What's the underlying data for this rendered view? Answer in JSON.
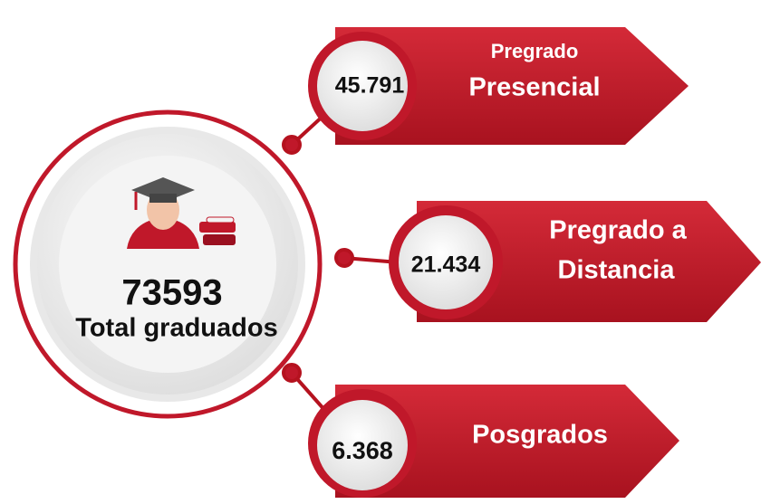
{
  "total": {
    "value": "73593",
    "label": "Total graduados"
  },
  "items": [
    {
      "value": "45.791",
      "label_line1": "Pregrado",
      "label_line2": "Presencial"
    },
    {
      "value": "21.434",
      "label_line1": "Pregrado a",
      "label_line2": "Distancia"
    },
    {
      "value": "6.368",
      "label_line1": "Posgrados"
    }
  ]
}
